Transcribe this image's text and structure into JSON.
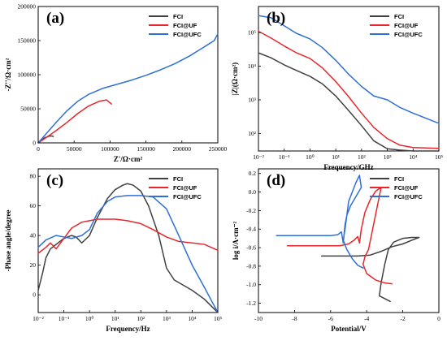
{
  "colors": {
    "FCI": "#404040",
    "FCI@UF": "#e8262b",
    "FCI@UFC": "#2f6fd6"
  },
  "chart_data": [
    {
      "panel": "(a)",
      "type": "line",
      "xlabel": "Z'/Ω·cm²",
      "ylabel": "-Z''/Ω·cm²",
      "xlim": [
        0,
        250000
      ],
      "ylim": [
        0,
        200000
      ],
      "xticks": [
        0,
        50000,
        100000,
        150000,
        200000,
        250000
      ],
      "yticks": [
        0,
        50000,
        100000,
        150000,
        200000
      ],
      "xtick_labels": [
        "0",
        "50000",
        "100000",
        "150000",
        "200000",
        "250000"
      ],
      "ytick_labels": [
        "0",
        "50000",
        "100000",
        "150000",
        "200000"
      ],
      "legend_position": "top-right",
      "series": [
        {
          "name": "FCI",
          "x": [
            0,
            4000,
            9000,
            14000,
            18000,
            21000
          ],
          "y": [
            0,
            4000,
            7500,
            9500,
            10200,
            9500
          ]
        },
        {
          "name": "FCI@UF",
          "x": [
            0,
            10000,
            25000,
            40000,
            55000,
            70000,
            85000,
            95000,
            102000
          ],
          "y": [
            0,
            7000,
            18000,
            30000,
            43000,
            54000,
            61000,
            63000,
            57000
          ]
        },
        {
          "name": "FCI@UFC",
          "x": [
            0,
            10000,
            25000,
            40000,
            55000,
            70000,
            90000,
            110000,
            130000,
            150000,
            170000,
            190000,
            210000,
            230000,
            245000,
            250000
          ],
          "y": [
            0,
            12000,
            30000,
            47000,
            61000,
            71000,
            80000,
            86000,
            92000,
            99000,
            107000,
            116000,
            127000,
            140000,
            150000,
            160000
          ]
        }
      ]
    },
    {
      "panel": "(b)",
      "type": "line",
      "xlabel": "Frequency/GHz",
      "ylabel": "|Z|(Ω·cm²)",
      "xscale": "log",
      "yscale": "log",
      "xlim": [
        0.01,
        100000
      ],
      "ylim": [
        30,
        600000
      ],
      "xticks": [
        0.01,
        0.1,
        1,
        10,
        100,
        1000,
        10000,
        100000
      ],
      "yticks": [
        100,
        1000,
        10000,
        100000
      ],
      "xtick_labels": [
        "10⁻²",
        "10⁻¹",
        "10⁰",
        "10¹",
        "10²",
        "10³",
        "10⁴",
        "10⁵"
      ],
      "ytick_labels": [
        "10²",
        "10³",
        "10⁴",
        "10⁵"
      ],
      "legend_position": "top-right",
      "series": [
        {
          "name": "FCI",
          "x": [
            0.01,
            0.03,
            0.1,
            0.3,
            1,
            3,
            10,
            30,
            100,
            300,
            1000,
            3000,
            10000,
            100000
          ],
          "y": [
            25000,
            18000,
            11000,
            7500,
            5000,
            3000,
            1300,
            500,
            170,
            60,
            35,
            32,
            30,
            30
          ]
        },
        {
          "name": "FCI@UF",
          "x": [
            0.01,
            0.03,
            0.1,
            0.3,
            1,
            3,
            10,
            30,
            100,
            300,
            1000,
            3000,
            10000,
            100000
          ],
          "y": [
            110000,
            70000,
            40000,
            25000,
            17000,
            9000,
            3500,
            1300,
            400,
            150,
            70,
            45,
            38,
            36
          ]
        },
        {
          "name": "FCI@UFC",
          "x": [
            0.01,
            0.03,
            0.1,
            0.3,
            1,
            3,
            10,
            30,
            100,
            300,
            1000,
            3000,
            10000,
            100000
          ],
          "y": [
            320000,
            280000,
            160000,
            95000,
            65000,
            36000,
            15000,
            6000,
            2500,
            1300,
            1000,
            600,
            400,
            200
          ]
        }
      ]
    },
    {
      "panel": "(c)",
      "type": "line",
      "xlabel": "Frequency/Hz",
      "ylabel": "-Phase angle/degree",
      "xscale": "log",
      "xlim": [
        0.01,
        100000
      ],
      "ylim": [
        -12,
        85
      ],
      "xticks": [
        0.01,
        0.1,
        1,
        10,
        100,
        1000,
        10000,
        100000
      ],
      "yticks": [
        0,
        20,
        40,
        60,
        80
      ],
      "xtick_labels": [
        "10⁻²",
        "10⁻¹",
        "10⁰",
        "10¹",
        "10²",
        "10³",
        "10⁴",
        "10⁵"
      ],
      "ytick_labels": [
        "0",
        "20",
        "40",
        "60",
        "80"
      ],
      "legend_position": "top-right",
      "series": [
        {
          "name": "FCI",
          "x": [
            0.01,
            0.015,
            0.02,
            0.03,
            0.05,
            0.1,
            0.2,
            0.3,
            0.5,
            1,
            2,
            5,
            10,
            20,
            30,
            50,
            100,
            200,
            500,
            1000,
            2000,
            5000,
            10000,
            30000,
            100000
          ],
          "y": [
            3,
            15,
            25,
            31,
            34,
            38,
            40,
            39,
            35,
            40,
            52,
            65,
            71,
            74,
            75,
            74,
            70,
            60,
            40,
            18,
            10,
            6,
            3,
            -3,
            -12
          ]
        },
        {
          "name": "FCI@UF",
          "x": [
            0.01,
            0.02,
            0.03,
            0.05,
            0.1,
            0.2,
            0.5,
            1,
            2,
            5,
            10,
            30,
            100,
            300,
            1000,
            3000,
            10000,
            30000,
            100000
          ],
          "y": [
            28,
            32,
            35,
            31,
            38,
            45,
            49,
            50,
            51,
            51,
            51,
            50,
            48,
            44,
            39,
            36,
            35,
            34,
            30
          ]
        },
        {
          "name": "FCI@UFC",
          "x": [
            0.01,
            0.02,
            0.05,
            0.1,
            0.2,
            0.5,
            1,
            2,
            5,
            10,
            30,
            100,
            300,
            1000,
            3000,
            10000,
            30000,
            100000
          ],
          "y": [
            32,
            37,
            40,
            39,
            38,
            40,
            44,
            55,
            63,
            66,
            67,
            67,
            66,
            58,
            40,
            20,
            5,
            -12
          ]
        }
      ]
    },
    {
      "panel": "(d)",
      "type": "line",
      "xlabel": "Potential/V",
      "ylabel": "log i/A·cm⁻²",
      "xlim": [
        -10,
        0
      ],
      "ylim": [
        -1.3,
        0.25
      ],
      "xticks": [
        -10,
        -8,
        -6,
        -4,
        -2,
        0
      ],
      "yticks": [
        -1.2,
        -1.0,
        -0.8,
        -0.6,
        -0.4,
        -0.2,
        0.0,
        0.2
      ],
      "xtick_labels": [
        "-10",
        "-8",
        "-6",
        "-4",
        "-2",
        "0"
      ],
      "ytick_labels": [
        "-1.2",
        "-1.0",
        "-0.8",
        "-0.6",
        "-0.4",
        "-0.2",
        "0.0",
        "0.2"
      ],
      "legend_position": "top-right",
      "series": [
        {
          "name": "FCI",
          "x": [
            -6.5,
            -5.5,
            -4.5,
            -3.8,
            -3.2,
            -2.6,
            -2.0,
            -1.5,
            -1.1,
            -1.5,
            -2.0,
            -2.5,
            -2.8,
            -3.0,
            -3.2,
            -3.3,
            -2.7
          ],
          "y": [
            -0.69,
            -0.69,
            -0.69,
            -0.68,
            -0.64,
            -0.59,
            -0.56,
            -0.52,
            -0.49,
            -0.49,
            -0.5,
            -0.54,
            -0.62,
            -0.78,
            -0.98,
            -1.12,
            -1.18
          ]
        },
        {
          "name": "FCI@UF",
          "x": [
            -8.4,
            -7.2,
            -6.2,
            -5.5,
            -5.0,
            -4.7,
            -4.5,
            -4.4,
            -4.3,
            -4.1,
            -3.8,
            -3.5,
            -3.2,
            -3.9,
            -4.1,
            -4.2,
            -4.0,
            -3.5,
            -3.0,
            -2.6
          ],
          "y": [
            -0.58,
            -0.58,
            -0.58,
            -0.58,
            -0.56,
            -0.52,
            -0.48,
            -0.55,
            -0.4,
            -0.22,
            -0.08,
            0.01,
            0.05,
            -0.62,
            -0.7,
            -0.78,
            -0.88,
            -0.95,
            -0.98,
            -0.99
          ]
        },
        {
          "name": "FCI@UFC",
          "x": [
            -9.0,
            -7.8,
            -6.8,
            -6.0,
            -5.6,
            -5.4,
            -5.3,
            -5.2,
            -5.1,
            -4.9,
            -4.6,
            -4.3,
            -4.4,
            -4.6,
            -5.0,
            -5.2,
            -5.3,
            -5.1,
            -4.8,
            -4.5,
            -4.2
          ],
          "y": [
            -0.47,
            -0.47,
            -0.47,
            -0.47,
            -0.46,
            -0.43,
            -0.55,
            -0.35,
            -0.25,
            -0.15,
            -0.05,
            0.05,
            0.18,
            0.1,
            -0.1,
            -0.4,
            -0.52,
            -0.62,
            -0.72,
            -0.79,
            -0.82
          ]
        }
      ]
    }
  ]
}
